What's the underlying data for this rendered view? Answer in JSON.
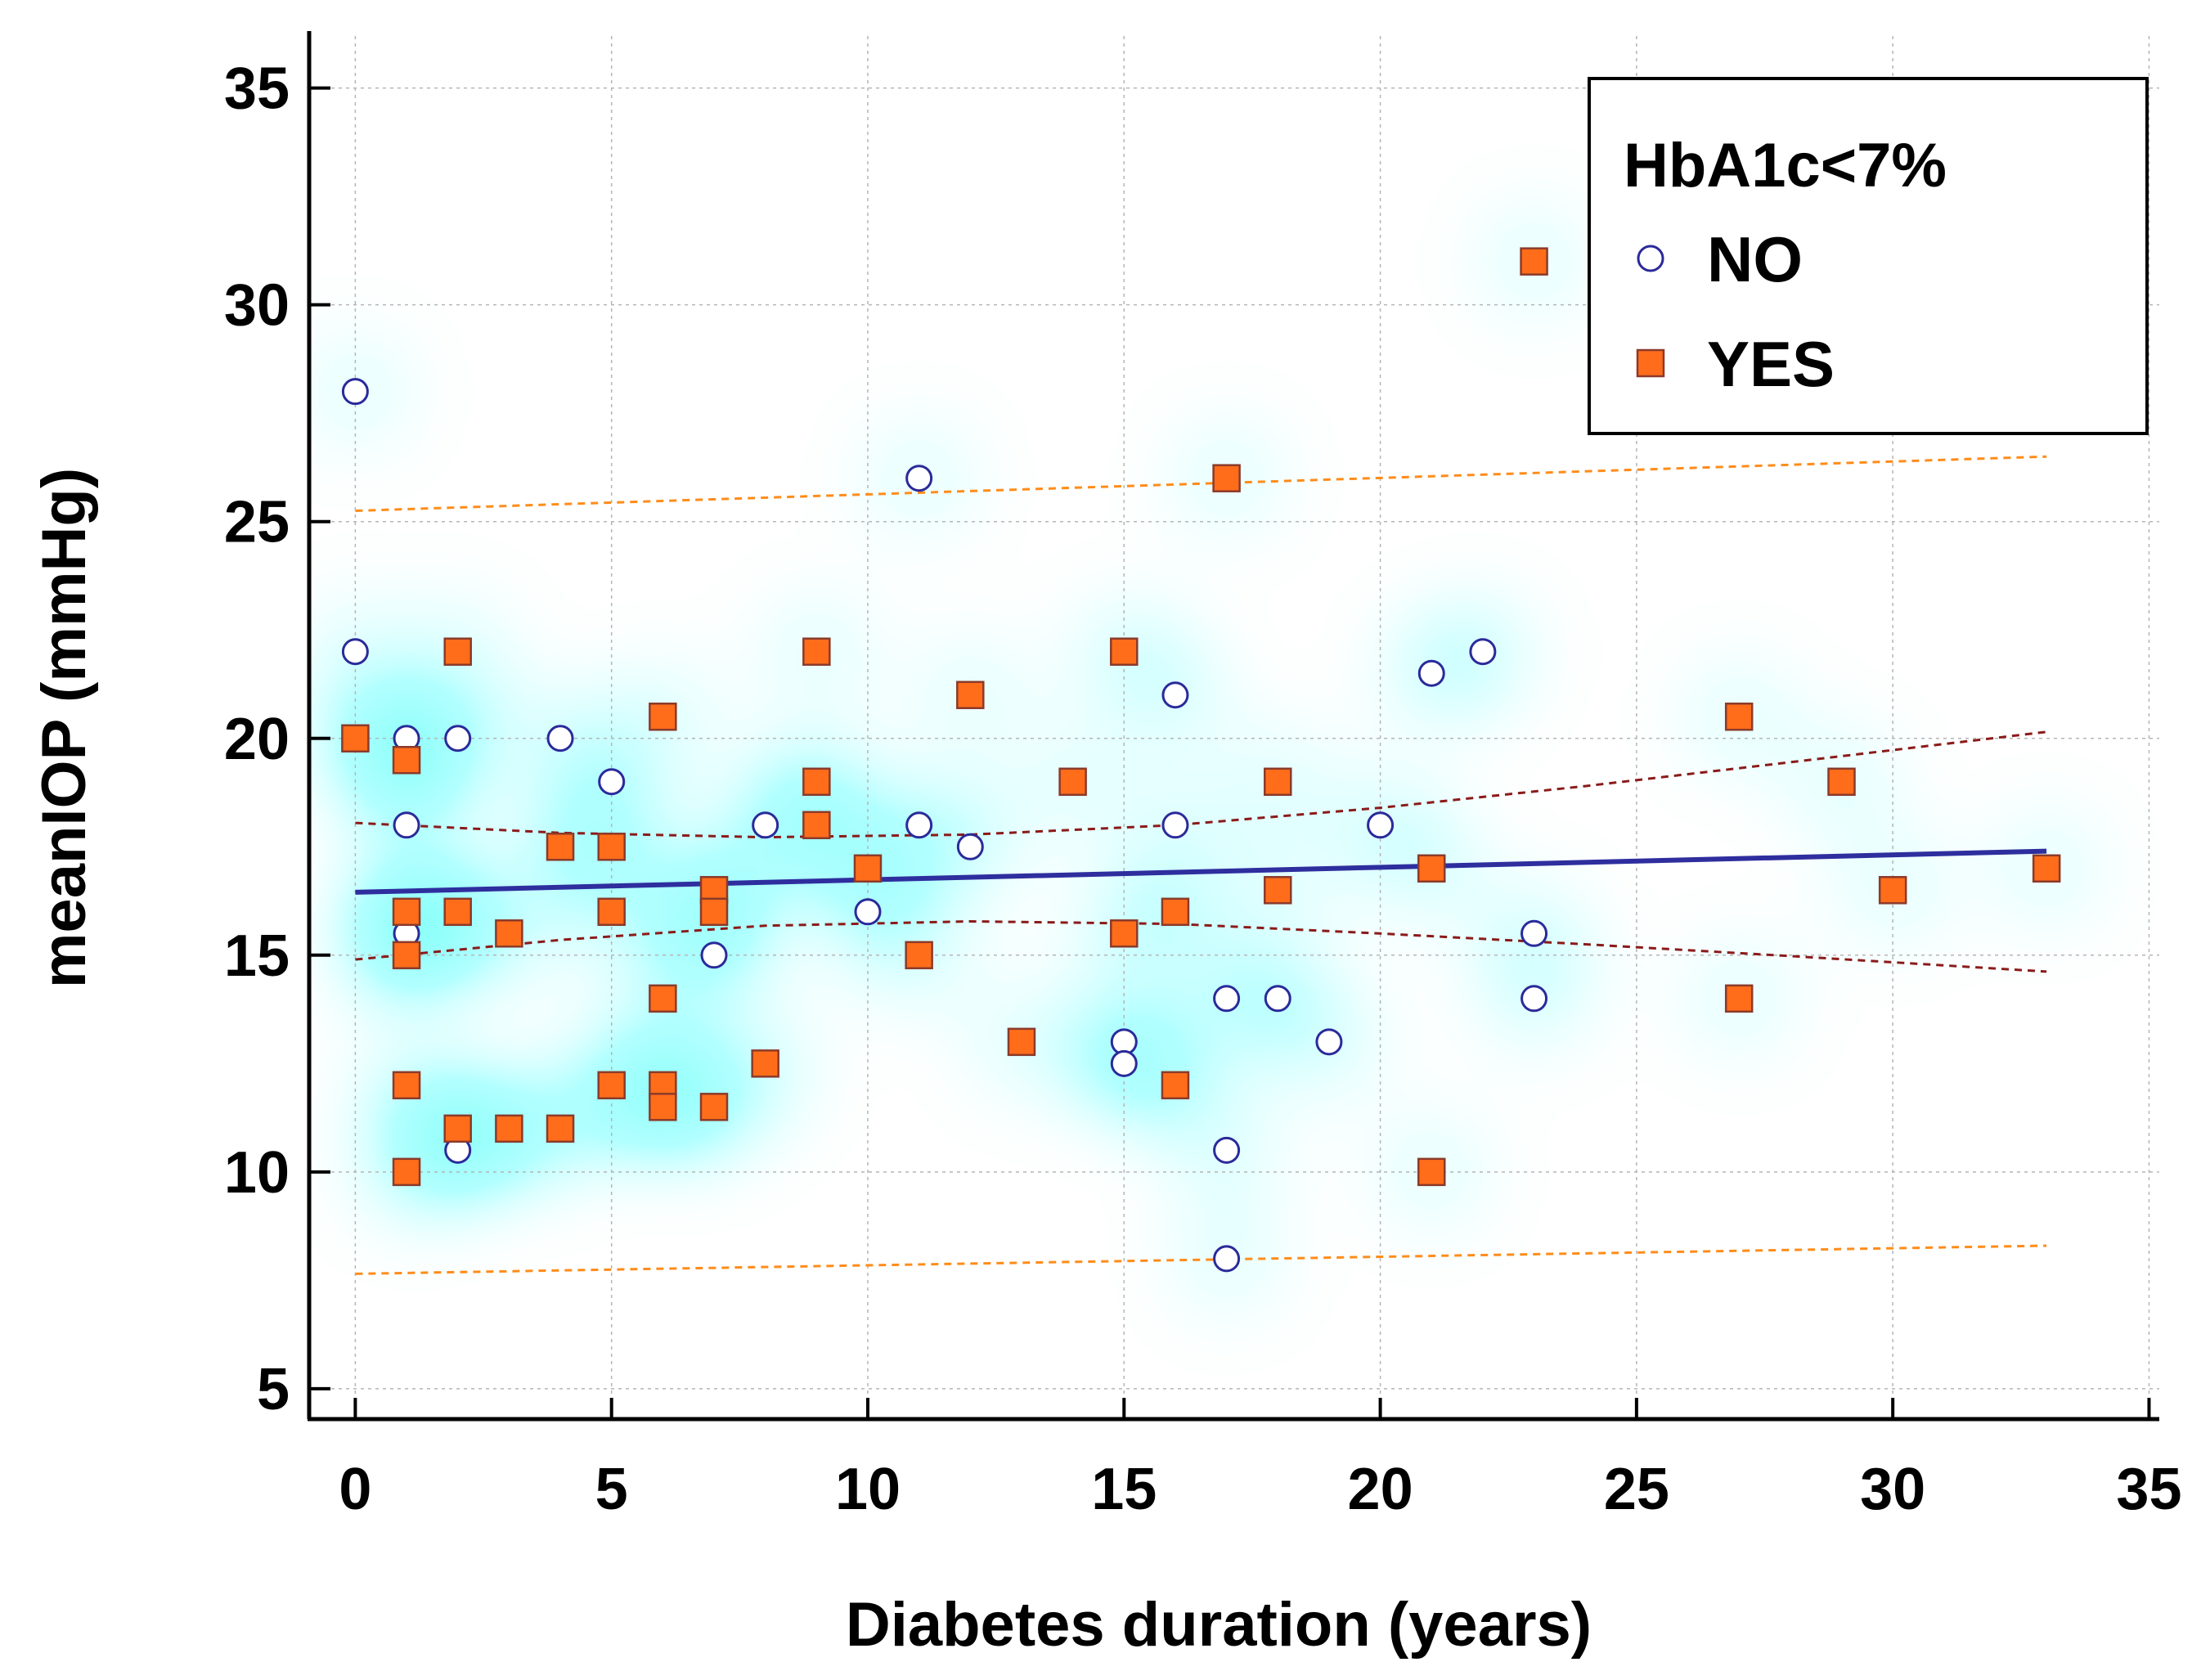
{
  "chart_data": {
    "type": "scatter",
    "title": "",
    "xlabel": "Diabetes duration (years)",
    "ylabel": "meanIOP (mmHg)",
    "xlim": [
      -0.9,
      35.2
    ],
    "ylim": [
      4.3,
      36.2
    ],
    "xticks": [
      0,
      5,
      10,
      15,
      20,
      25,
      30,
      35
    ],
    "yticks": [
      5,
      10,
      15,
      20,
      25,
      30,
      35
    ],
    "grid": true,
    "legend": {
      "title": "HbA1c<7%",
      "position": "top-right",
      "entries": [
        "NO",
        "YES"
      ]
    },
    "colors": {
      "no_fill": "#ffffff",
      "no_stroke": "#2a2a9a",
      "yes_fill": "#ff6d1a",
      "yes_stroke": "#8b3a2a",
      "fit_line": "#2e2e9e",
      "ci_line": "#8b1a1a",
      "pi_line": "#ff8c1a"
    },
    "series": [
      {
        "name": "NO",
        "marker": "circle",
        "points": [
          [
            0,
            28
          ],
          [
            0,
            22
          ],
          [
            1,
            20
          ],
          [
            1,
            18
          ],
          [
            1,
            15.5
          ],
          [
            2,
            20
          ],
          [
            2,
            10.5
          ],
          [
            4,
            20
          ],
          [
            5,
            19
          ],
          [
            7,
            15
          ],
          [
            8,
            18
          ],
          [
            10,
            16
          ],
          [
            11,
            26
          ],
          [
            11,
            18
          ],
          [
            12,
            17.5
          ],
          [
            15,
            13
          ],
          [
            15,
            12.5
          ],
          [
            16,
            21
          ],
          [
            16,
            18
          ],
          [
            17,
            14
          ],
          [
            17,
            10.5
          ],
          [
            17,
            8
          ],
          [
            18,
            14
          ],
          [
            19,
            13
          ],
          [
            20,
            18
          ],
          [
            21,
            21.5
          ],
          [
            22,
            22
          ],
          [
            23,
            15.5
          ],
          [
            23,
            14
          ]
        ]
      },
      {
        "name": "YES",
        "marker": "square",
        "points": [
          [
            0,
            20
          ],
          [
            1,
            19.5
          ],
          [
            1,
            16
          ],
          [
            1,
            15
          ],
          [
            1,
            12
          ],
          [
            1,
            10
          ],
          [
            2,
            22
          ],
          [
            2,
            16
          ],
          [
            2,
            11
          ],
          [
            3,
            15.5
          ],
          [
            3,
            11
          ],
          [
            4,
            17.5
          ],
          [
            4,
            11
          ],
          [
            5,
            17.5
          ],
          [
            5,
            16
          ],
          [
            5,
            12
          ],
          [
            6,
            20.5
          ],
          [
            6,
            14
          ],
          [
            6,
            12
          ],
          [
            6,
            11.5
          ],
          [
            7,
            16.5
          ],
          [
            7,
            16
          ],
          [
            7,
            11.5
          ],
          [
            8,
            12.5
          ],
          [
            9,
            22
          ],
          [
            9,
            19
          ],
          [
            9,
            18
          ],
          [
            10,
            17
          ],
          [
            11,
            15
          ],
          [
            12,
            21
          ],
          [
            13,
            13
          ],
          [
            14,
            19
          ],
          [
            15,
            22
          ],
          [
            15,
            15.5
          ],
          [
            16,
            16
          ],
          [
            16,
            12
          ],
          [
            17,
            26
          ],
          [
            18,
            19
          ],
          [
            18,
            16.5
          ],
          [
            21,
            17
          ],
          [
            21,
            10
          ],
          [
            23,
            31
          ],
          [
            27,
            20.5
          ],
          [
            27,
            14
          ],
          [
            29,
            19
          ],
          [
            30,
            16.5
          ],
          [
            33,
            17
          ]
        ]
      }
    ],
    "regression": {
      "x": [
        0,
        33
      ],
      "y": [
        16.45,
        17.4
      ]
    },
    "confidence_band": {
      "x": [
        0,
        4,
        8,
        12,
        16,
        20,
        24,
        28,
        33
      ],
      "upper": [
        18.05,
        17.82,
        17.72,
        17.78,
        18.0,
        18.4,
        18.9,
        19.45,
        20.15
      ],
      "lower": [
        14.9,
        15.35,
        15.68,
        15.78,
        15.72,
        15.5,
        15.25,
        14.98,
        14.62
      ]
    },
    "prediction_band": {
      "x": [
        0,
        33
      ],
      "upper": [
        25.25,
        26.5
      ],
      "lower": [
        7.65,
        8.3
      ]
    }
  }
}
